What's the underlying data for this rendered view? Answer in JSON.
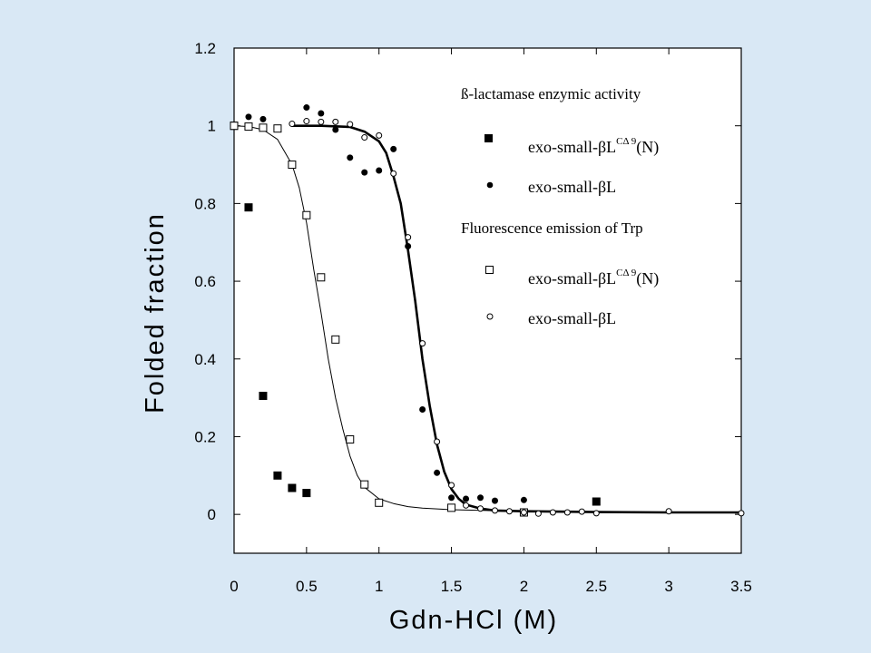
{
  "chart_data": {
    "type": "scatter",
    "xlabel": "Gdn-HCl (M)",
    "ylabel": "Folded fraction",
    "xlim": [
      0,
      3.5
    ],
    "ylim": [
      -0.1,
      1.2
    ],
    "x_ticks": [
      "0",
      "0.5",
      "1",
      "1.5",
      "2",
      "2.5",
      "3",
      "3.5"
    ],
    "y_ticks": [
      "0",
      "0.2",
      "0.4",
      "0.6",
      "0.8",
      "1",
      "1.2"
    ],
    "grid": false,
    "legend_position": "top-right",
    "legend": {
      "group1_title": "ß-lactamase enzymic activity",
      "group2_title": "Fluorescence emission of Trp",
      "entries": [
        {
          "base": "exo-small-βL",
          "sup": "CΔ 9",
          "suffix": "(N)"
        },
        {
          "base": "exo-small-βL",
          "sup": "",
          "suffix": ""
        },
        {
          "base": "exo-small-βL",
          "sup": "CΔ 9",
          "suffix": "(N)"
        },
        {
          "base": "exo-small-βL",
          "sup": "",
          "suffix": ""
        }
      ]
    },
    "series": [
      {
        "marker": "filled-square",
        "x": [
          0,
          0.1,
          0.2,
          0.3,
          0.4,
          0.5,
          2.5
        ],
        "y": [
          1.0,
          0.79,
          0.305,
          0.1,
          0.068,
          0.055,
          0.033
        ]
      },
      {
        "marker": "filled-circle",
        "x": [
          0.1,
          0.2,
          0.5,
          0.6,
          0.7,
          0.8,
          0.9,
          1.0,
          1.1,
          1.2,
          1.3,
          1.4,
          1.5,
          1.6,
          1.7,
          1.8,
          2.0
        ],
        "y": [
          1.023,
          1.017,
          1.047,
          1.032,
          0.99,
          0.918,
          0.88,
          0.885,
          0.94,
          0.69,
          0.27,
          0.107,
          0.043,
          0.04,
          0.043,
          0.035,
          0.037
        ]
      },
      {
        "marker": "open-square",
        "x": [
          0,
          0.1,
          0.2,
          0.3,
          0.4,
          0.5,
          0.6,
          0.7,
          0.8,
          0.9,
          1.0,
          1.5,
          2.0
        ],
        "y": [
          1.0,
          0.998,
          0.995,
          0.993,
          0.9,
          0.77,
          0.61,
          0.45,
          0.193,
          0.077,
          0.03,
          0.017,
          0.005
        ]
      },
      {
        "marker": "open-circle",
        "x": [
          0.4,
          0.5,
          0.6,
          0.7,
          0.8,
          0.9,
          1.0,
          1.1,
          1.2,
          1.3,
          1.4,
          1.5,
          1.6,
          1.7,
          1.8,
          1.9,
          2.0,
          2.1,
          2.2,
          2.3,
          2.4,
          2.5,
          3.0,
          3.5
        ],
        "y": [
          1.005,
          1.012,
          1.01,
          1.01,
          1.004,
          0.97,
          0.975,
          0.877,
          0.713,
          0.44,
          0.187,
          0.075,
          0.023,
          0.015,
          0.01,
          0.008,
          0.005,
          0.002,
          0.005,
          0.005,
          0.007,
          0.003,
          0.008,
          0.003
        ]
      }
    ],
    "fit_curves": [
      {
        "style": "thin",
        "x": [
          0,
          0.1,
          0.2,
          0.3,
          0.4,
          0.45,
          0.5,
          0.55,
          0.6,
          0.65,
          0.7,
          0.75,
          0.8,
          0.85,
          0.9,
          1.0,
          1.1,
          1.2,
          1.3,
          1.5,
          2.0,
          2.5,
          3.0,
          3.5
        ],
        "y": [
          1.0,
          0.998,
          0.99,
          0.965,
          0.9,
          0.84,
          0.75,
          0.63,
          0.52,
          0.4,
          0.3,
          0.22,
          0.15,
          0.1,
          0.07,
          0.04,
          0.028,
          0.02,
          0.016,
          0.012,
          0.008,
          0.007,
          0.006,
          0.005
        ]
      },
      {
        "style": "thick",
        "x": [
          0.4,
          0.6,
          0.8,
          0.9,
          1.0,
          1.05,
          1.1,
          1.15,
          1.2,
          1.25,
          1.3,
          1.35,
          1.4,
          1.45,
          1.5,
          1.55,
          1.6,
          1.7,
          1.8,
          2.0,
          2.5,
          3.0,
          3.5
        ],
        "y": [
          1.0,
          1.0,
          0.997,
          0.985,
          0.96,
          0.93,
          0.87,
          0.8,
          0.68,
          0.55,
          0.4,
          0.28,
          0.18,
          0.11,
          0.065,
          0.04,
          0.025,
          0.015,
          0.01,
          0.008,
          0.006,
          0.005,
          0.005
        ]
      }
    ]
  }
}
